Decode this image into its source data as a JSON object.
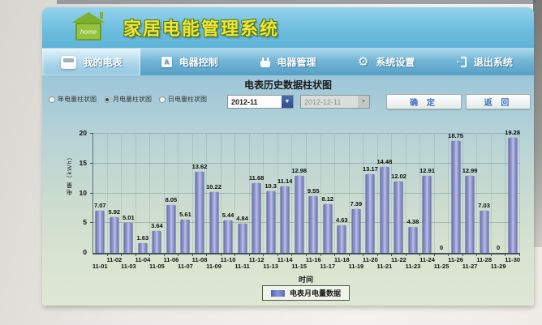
{
  "app": {
    "title": "家居电能管理系统",
    "logo_text": "home"
  },
  "nav": {
    "tabs": [
      {
        "label": "我的电表",
        "icon": "meter-icon",
        "active": true
      },
      {
        "label": "电器控制",
        "icon": "appliance-control-icon",
        "icon_letter": "A",
        "active": false
      },
      {
        "label": "电器管理",
        "icon": "appliance-management-icon",
        "active": false
      },
      {
        "label": "系统设置",
        "icon": "gear-icon",
        "icon_glyph": "⚙",
        "active": false
      },
      {
        "label": "退出系统",
        "icon": "exit-icon",
        "icon_glyph": "←",
        "active": false
      }
    ]
  },
  "panel": {
    "radios": [
      {
        "label": "年电量柱状图",
        "selected": false
      },
      {
        "label": "月电量柱状图",
        "selected": true
      },
      {
        "label": "日电量柱状图",
        "selected": false
      }
    ],
    "month_select": "2012-11",
    "date_select": "2012-12-11",
    "confirm_label": "确 定",
    "back_label": "返 回"
  },
  "chart_data": {
    "type": "bar",
    "title": "电表历史数据柱状图",
    "xlabel": "时间",
    "ylabel": "电量（kWh）",
    "legend": "电表月电量数据",
    "legend_position": "bottom",
    "grid": true,
    "ylim": [
      0,
      20
    ],
    "yticks": [
      0,
      5,
      10,
      15,
      20
    ],
    "bar_color": "#7b82c2",
    "categories": [
      "11-01",
      "11-02",
      "11-03",
      "11-04",
      "11-05",
      "11-06",
      "11-07",
      "11-08",
      "11-09",
      "11-10",
      "11-11",
      "11-12",
      "11-13",
      "11-14",
      "11-15",
      "11-16",
      "11-17",
      "11-18",
      "11-19",
      "11-20",
      "11-21",
      "11-22",
      "11-23",
      "11-24",
      "11-25",
      "11-26",
      "11-27",
      "11-28",
      "11-29",
      "11-30"
    ],
    "values": [
      7.07,
      5.92,
      5.01,
      1.63,
      3.64,
      8.05,
      5.61,
      13.62,
      10.22,
      5.44,
      4.84,
      11.68,
      10.3,
      11.14,
      12.98,
      9.55,
      8.12,
      4.63,
      7.39,
      13.17,
      14.48,
      12.02,
      4.38,
      12.91,
      0,
      18.75,
      12.99,
      7.03,
      0,
      19.28
    ]
  }
}
